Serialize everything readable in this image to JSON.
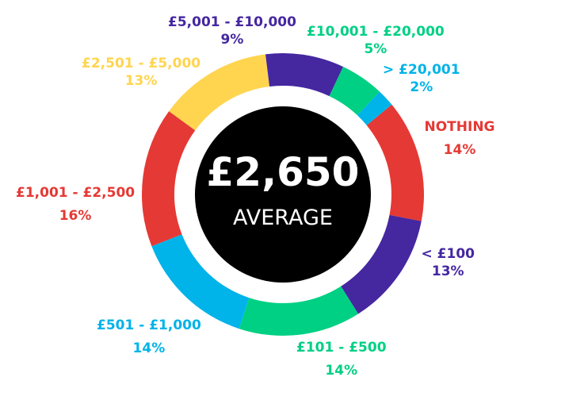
{
  "chart_data": {
    "type": "pie",
    "variant": "donut",
    "center": {
      "value": "£2,650",
      "label": "AVERAGE"
    },
    "slices": [
      {
        "label": "NOTHING",
        "value": 14,
        "display": "14%",
        "color": "#E53935"
      },
      {
        "label": "< £100",
        "value": 13,
        "display": "13%",
        "color": "#4527A0"
      },
      {
        "label": "£101 - £500",
        "value": 14,
        "display": "14%",
        "color": "#00D084"
      },
      {
        "label": "£501 - £1,000",
        "value": 14,
        "display": "14%",
        "color": "#00B3E8"
      },
      {
        "label": "£1,001 - £2,500",
        "value": 16,
        "display": "16%",
        "color": "#E53935"
      },
      {
        "label": "£2,501 - £5,000",
        "value": 13,
        "display": "13%",
        "color": "#FFD54F"
      },
      {
        "label": "£5,001 - £10,000",
        "value": 9,
        "display": "9%",
        "color": "#4527A0"
      },
      {
        "label": "£10,001 - £20,000",
        "value": 5,
        "display": "5%",
        "color": "#00D084"
      },
      {
        "label": "> £20,001",
        "value": 2,
        "display": "2%",
        "color": "#00B3E8"
      }
    ]
  }
}
